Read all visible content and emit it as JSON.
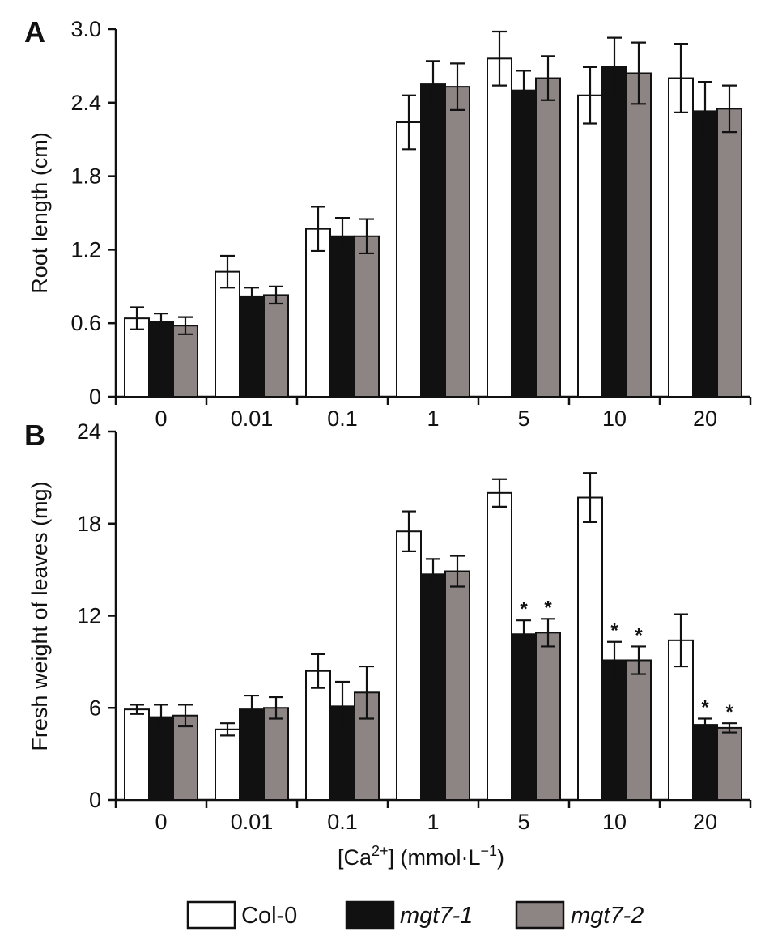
{
  "colors": {
    "col0": "#ffffff",
    "mgt71": "#111111",
    "mgt72": "#8c8584",
    "axis": "#111111"
  },
  "legend": [
    {
      "label": "Col-0",
      "color": "#ffffff",
      "italic": false
    },
    {
      "label": "mgt7-1",
      "color": "#111111",
      "italic": true
    },
    {
      "label": "mgt7-2",
      "color": "#8c8584",
      "italic": true
    }
  ],
  "xlabel": {
    "pre": "[Ca",
    "sup": "2+",
    "post": "] (mmol·L",
    "sup2": "−1",
    "close": ")"
  },
  "chart_data": [
    {
      "type": "bar",
      "panel": "A",
      "ylabel": "Root length (cm)",
      "ylim": [
        0,
        3.0
      ],
      "yticks": [
        "0",
        "0.6",
        "1.2",
        "1.8",
        "2.4",
        "3.0"
      ],
      "categories": [
        "0",
        "0.01",
        "0.1",
        "1",
        "5",
        "10",
        "20"
      ],
      "series": [
        {
          "name": "Col-0",
          "values": [
            0.64,
            1.02,
            1.37,
            2.24,
            2.76,
            2.46,
            2.6
          ],
          "errors": [
            0.09,
            0.13,
            0.18,
            0.22,
            0.22,
            0.23,
            0.28
          ]
        },
        {
          "name": "mgt7-1",
          "values": [
            0.61,
            0.82,
            1.31,
            2.55,
            2.5,
            2.69,
            2.33
          ],
          "errors": [
            0.07,
            0.07,
            0.15,
            0.19,
            0.16,
            0.24,
            0.24
          ]
        },
        {
          "name": "mgt7-2",
          "values": [
            0.58,
            0.83,
            1.31,
            2.53,
            2.6,
            2.64,
            2.35
          ],
          "errors": [
            0.07,
            0.07,
            0.14,
            0.19,
            0.18,
            0.25,
            0.19
          ]
        }
      ],
      "significance": []
    },
    {
      "type": "bar",
      "panel": "B",
      "ylabel": "Fresh weight of leaves (mg)",
      "ylim": [
        0,
        24
      ],
      "yticks": [
        "0",
        "6",
        "12",
        "18",
        "24"
      ],
      "categories": [
        "0",
        "0.01",
        "0.1",
        "1",
        "5",
        "10",
        "20"
      ],
      "series": [
        {
          "name": "Col-0",
          "values": [
            5.9,
            4.6,
            8.4,
            17.5,
            20.0,
            19.7,
            10.4
          ],
          "errors": [
            0.3,
            0.4,
            1.1,
            1.3,
            0.9,
            1.6,
            1.7
          ]
        },
        {
          "name": "mgt7-1",
          "values": [
            5.4,
            5.9,
            6.1,
            14.7,
            10.8,
            9.1,
            4.9
          ],
          "errors": [
            0.8,
            0.9,
            1.6,
            1.0,
            0.9,
            1.2,
            0.4
          ]
        },
        {
          "name": "mgt7-2",
          "values": [
            5.5,
            6.0,
            7.0,
            14.9,
            10.9,
            9.1,
            4.7
          ],
          "errors": [
            0.7,
            0.7,
            1.7,
            1.0,
            0.9,
            0.9,
            0.3
          ]
        }
      ],
      "significance": [
        {
          "category": "5",
          "series": "mgt7-1",
          "label": "*"
        },
        {
          "category": "5",
          "series": "mgt7-2",
          "label": "*"
        },
        {
          "category": "10",
          "series": "mgt7-1",
          "label": "*"
        },
        {
          "category": "10",
          "series": "mgt7-2",
          "label": "*"
        },
        {
          "category": "20",
          "series": "mgt7-1",
          "label": "*"
        },
        {
          "category": "20",
          "series": "mgt7-2",
          "label": "*"
        }
      ]
    }
  ]
}
